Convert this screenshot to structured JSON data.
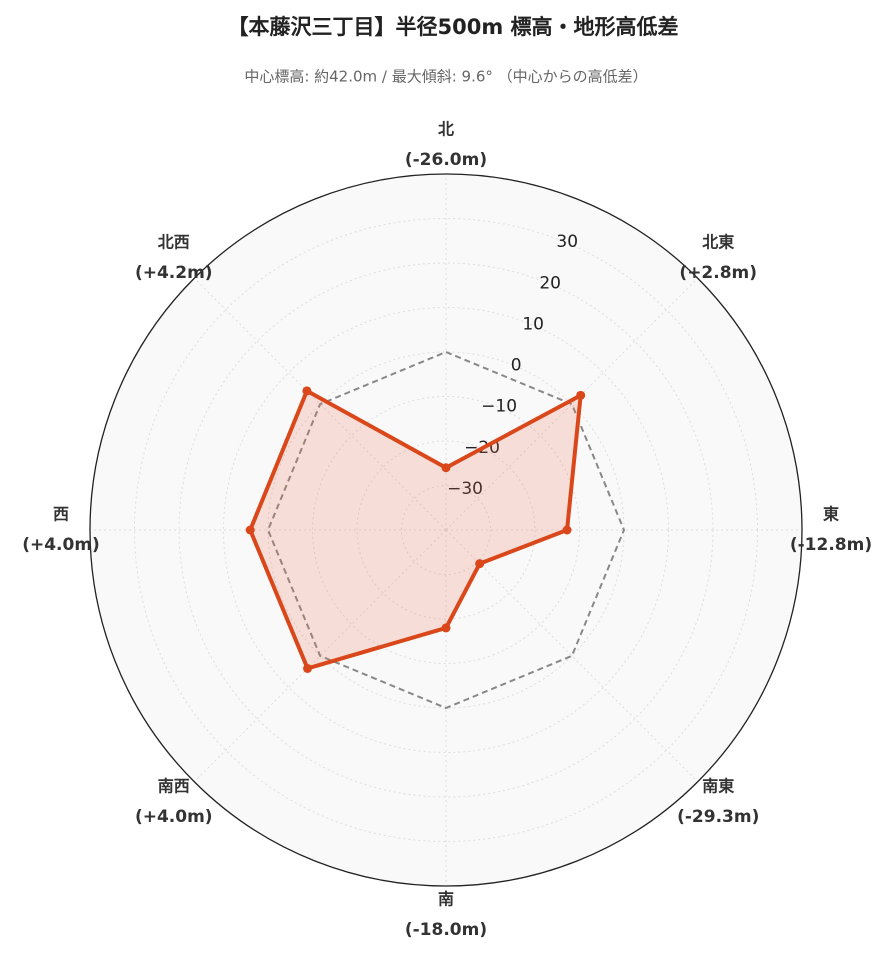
{
  "chart_data": {
    "type": "radar",
    "title": "【本藤沢三丁目】半径500m 標高・地形高低差",
    "subtitle": "中心標高: 約42.0m / 最大傾斜: 9.6° （中心からの高低差）",
    "categories": [
      "北",
      "北東",
      "東",
      "南東",
      "南",
      "南西",
      "西",
      "北西"
    ],
    "values": [
      -26.0,
      2.8,
      -12.8,
      -29.3,
      -18.0,
      4.0,
      4.0,
      4.2
    ],
    "value_labels": [
      "(-26.0m)",
      "(+2.8m)",
      "(-12.8m)",
      "(-29.3m)",
      "(-18.0m)",
      "(+4.0m)",
      "(+4.0m)",
      "(+4.2m)"
    ],
    "color": "#d9471a",
    "reference_line": 0,
    "ylim": [
      -40,
      40
    ],
    "yticks": [
      {
        "value": -30,
        "label": "−30"
      },
      {
        "value": -20,
        "label": "−20"
      },
      {
        "value": -10,
        "label": "−10"
      },
      0,
      10,
      20,
      30
    ],
    "grid": true
  }
}
